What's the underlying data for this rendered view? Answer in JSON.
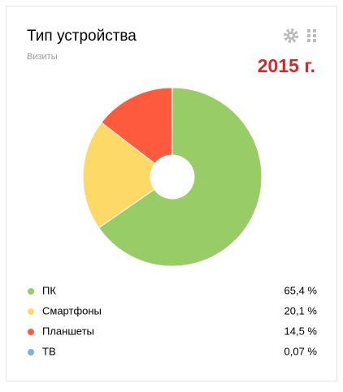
{
  "chart_data": {
    "type": "pie",
    "donut": true,
    "title": "Тип устройства",
    "subtitle": "Визиты",
    "annotation": "2015 г.",
    "series": [
      {
        "name": "ПК",
        "color": "#98cc66",
        "values": [
          65.4
        ],
        "value_labels": [
          "65,4 %"
        ]
      },
      {
        "name": "Смартфоны",
        "color": "#fdd968",
        "values": [
          20.1
        ],
        "value_labels": [
          "20,1 %"
        ]
      },
      {
        "name": "Планшеты",
        "color": "#fd5a3e",
        "values": [
          14.5
        ],
        "value_labels": [
          "14,5 %"
        ]
      },
      {
        "name": "ТВ",
        "color": "#7cb3d8",
        "values": [
          0.07
        ],
        "value_labels": [
          "0,07 %"
        ]
      }
    ]
  }
}
